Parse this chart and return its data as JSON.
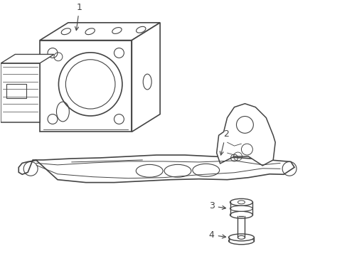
{
  "background_color": "#ffffff",
  "line_color": "#444444",
  "label_color": "#333333",
  "figsize": [
    4.89,
    3.6
  ],
  "dpi": 100
}
